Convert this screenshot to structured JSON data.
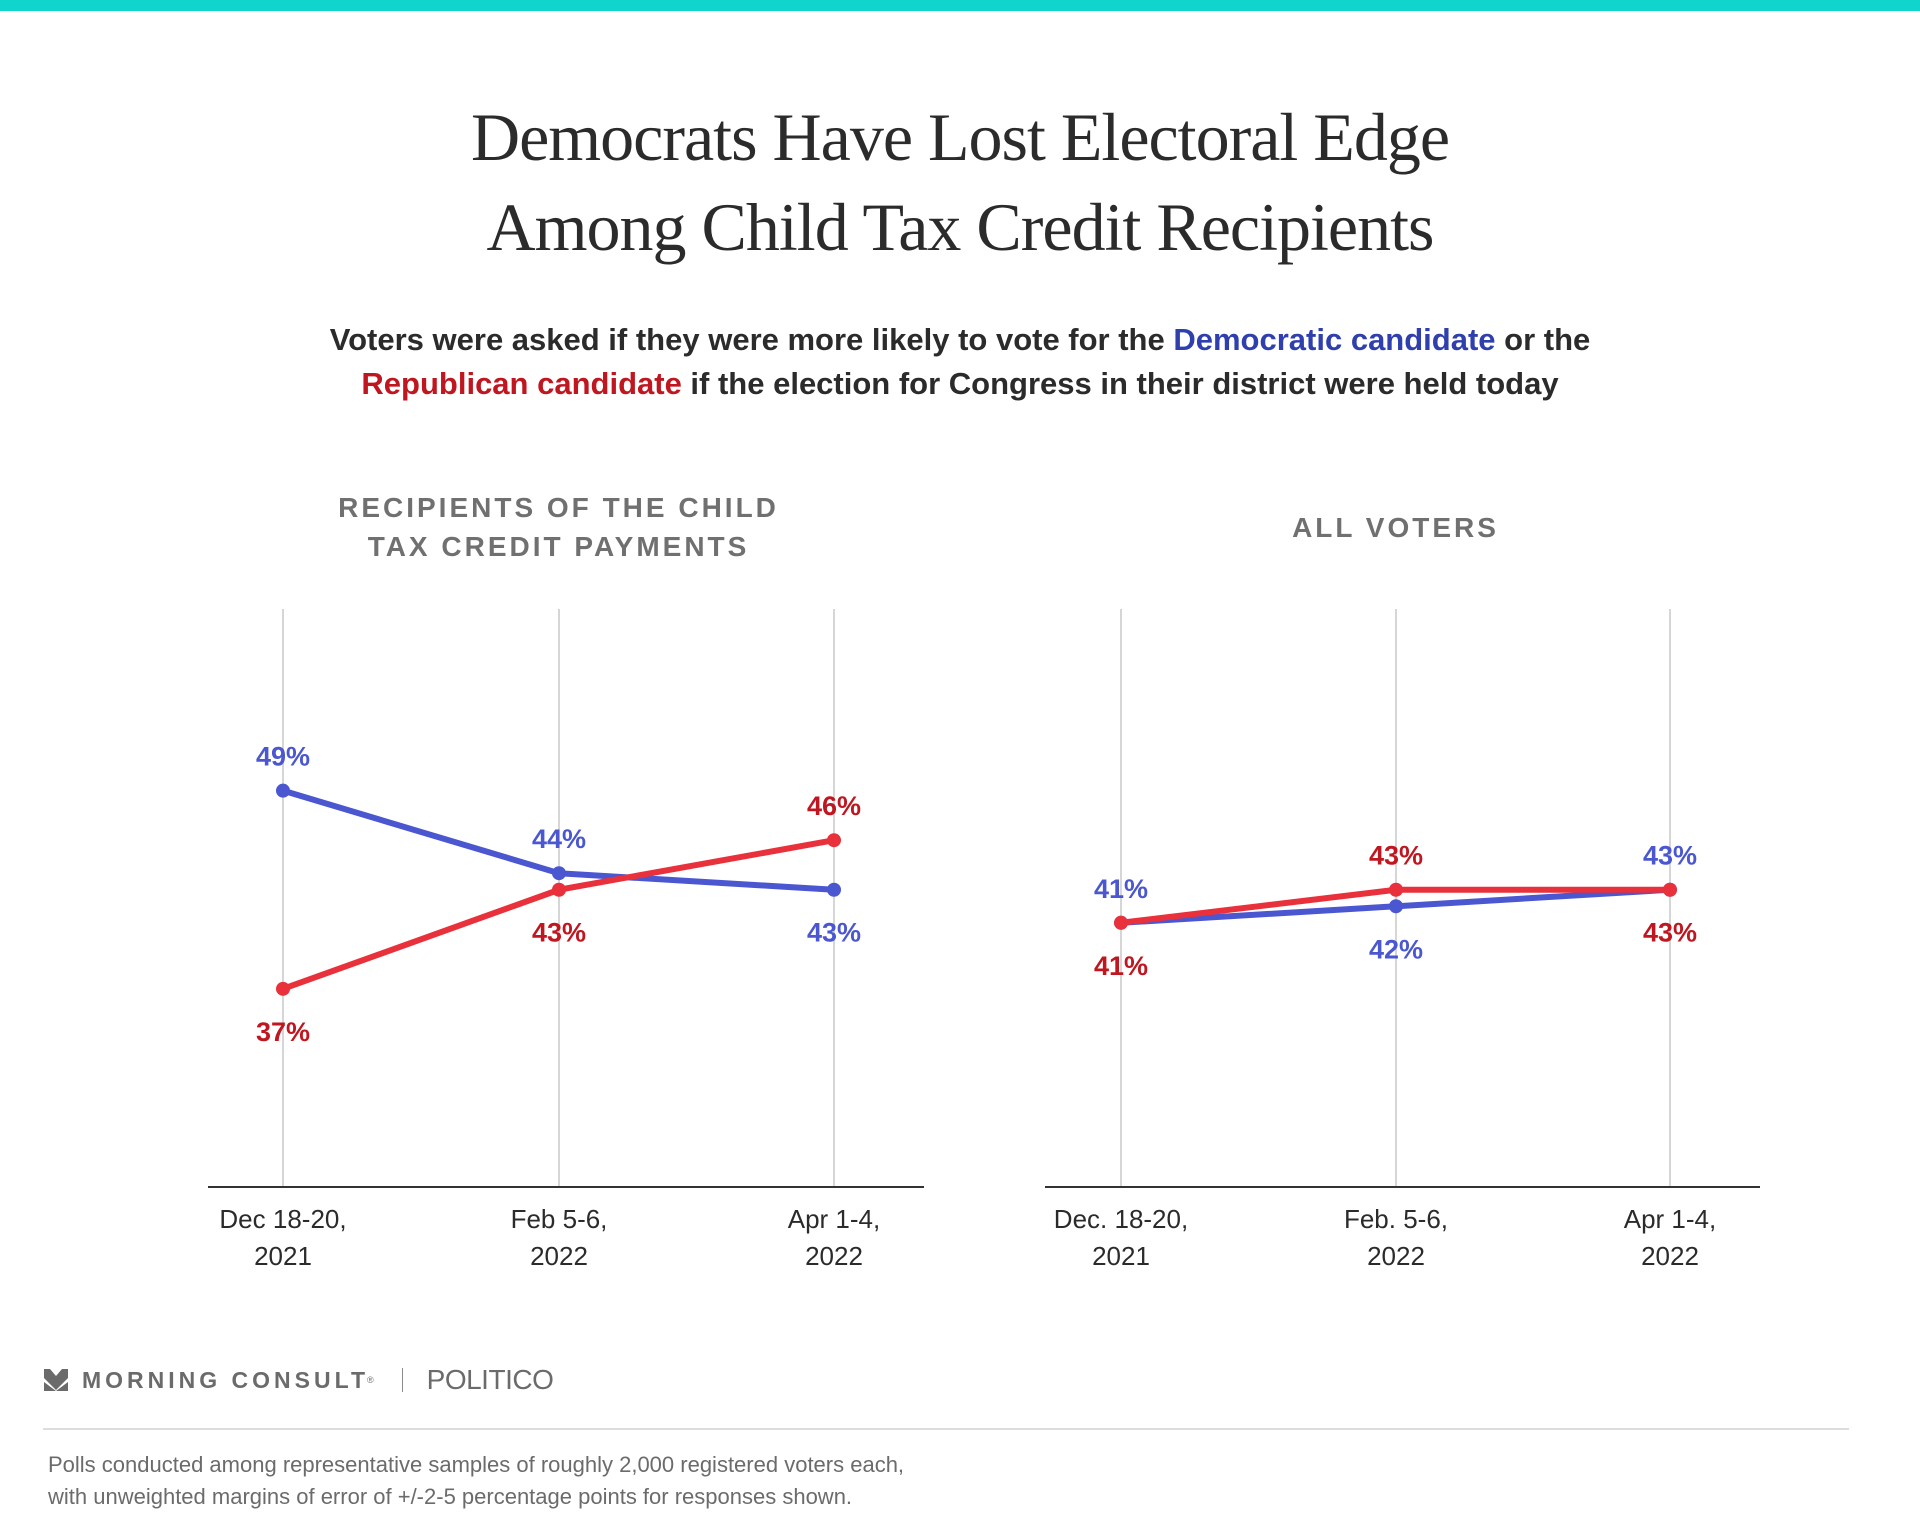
{
  "header": {
    "title_line1": "Democrats Have Lost Electoral Edge",
    "title_line2": "Among Child Tax Credit Recipients",
    "subtitle": {
      "part1": "Voters were asked if they were more likely to vote for the ",
      "dem": "Democratic candidate",
      "part2": " or the",
      "rep": "Republican candidate",
      "part3": " if the election for Congress in their district were held today"
    }
  },
  "colors": {
    "accent_bar": "#10d5cc",
    "democratic_line": "#4a57d0",
    "democratic_label": "#4a57d0",
    "republican_line": "#e8313b",
    "republican_label": "#c0161f",
    "gridline": "#d6d6d6",
    "axis": "#333333"
  },
  "chart_data": [
    {
      "type": "line",
      "title": "RECIPIENTS OF THE CHILD TAX CREDIT PAYMENTS",
      "title_lines": [
        "RECIPIENTS OF THE CHILD",
        "TAX CREDIT PAYMENTS"
      ],
      "categories": [
        [
          "Dec 18-20,",
          "2021"
        ],
        [
          "Feb 5-6,",
          "2022"
        ],
        [
          "Apr 1-4,",
          "2022"
        ]
      ],
      "series": [
        {
          "name": "Democratic candidate",
          "values": [
            49,
            44,
            43
          ],
          "labels": [
            "49%",
            "44%",
            "43%"
          ],
          "label_pos": [
            "above",
            "above",
            "below"
          ]
        },
        {
          "name": "Republican candidate",
          "values": [
            37,
            43,
            46
          ],
          "labels": [
            "37%",
            "43%",
            "46%"
          ],
          "label_pos": [
            "below",
            "below",
            "above"
          ]
        }
      ],
      "xlabel": "",
      "ylabel": "",
      "ylim": [
        25,
        60
      ],
      "grid": "vertical",
      "unit": "%"
    },
    {
      "type": "line",
      "title": "ALL VOTERS",
      "title_lines": [
        "ALL VOTERS"
      ],
      "categories": [
        [
          "Dec. 18-20,",
          "2021"
        ],
        [
          "Feb. 5-6,",
          "2022"
        ],
        [
          "Apr 1-4,",
          "2022"
        ]
      ],
      "series": [
        {
          "name": "Democratic candidate",
          "values": [
            41,
            42,
            43
          ],
          "labels": [
            "41%",
            "42%",
            "43%"
          ],
          "label_pos": [
            "above",
            "below",
            "above"
          ]
        },
        {
          "name": "Republican candidate",
          "values": [
            41,
            43,
            43
          ],
          "labels": [
            "41%",
            "43%",
            "43%"
          ],
          "label_pos": [
            "below",
            "above",
            "below"
          ]
        }
      ],
      "xlabel": "",
      "ylabel": "",
      "ylim": [
        25,
        60
      ],
      "grid": "vertical",
      "unit": "%"
    }
  ],
  "footer": {
    "brand_name": "MORNING CONSULT",
    "brand_reg": "®",
    "partner": "POLITICO",
    "logo_icon": "morning-consult-chevron-logo",
    "note_line1": "Polls conducted among representative samples of roughly 2,000 registered voters each,",
    "note_line2": "with unweighted margins of error of +/-2-5 percentage points for responses shown."
  }
}
